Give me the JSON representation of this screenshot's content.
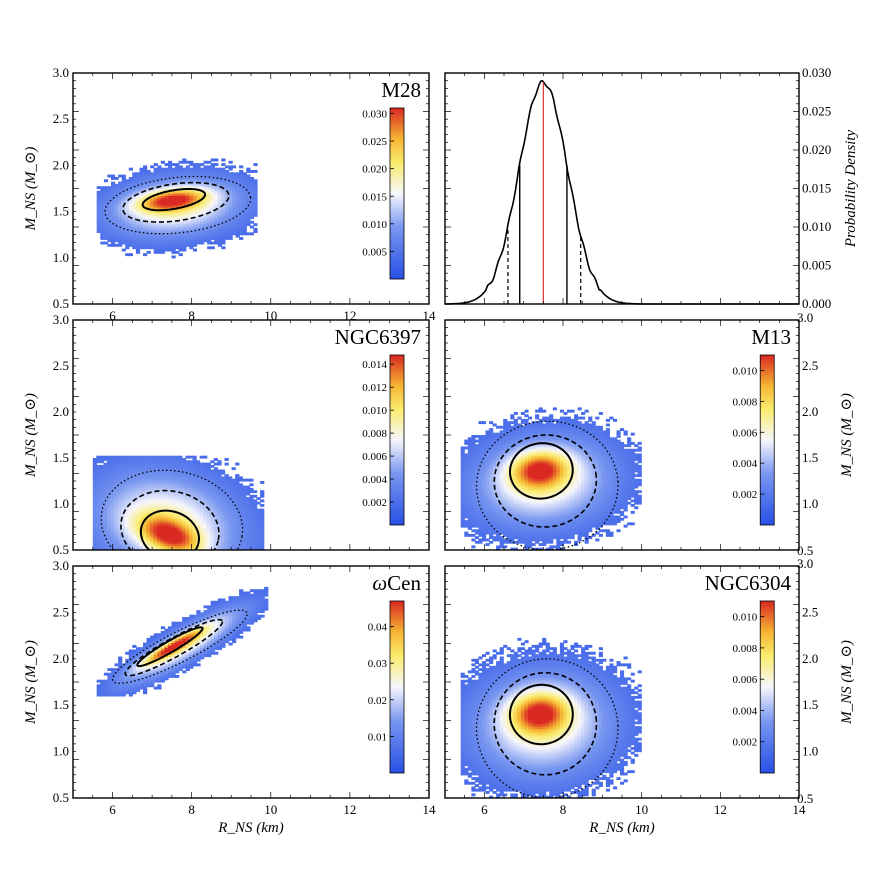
{
  "figure": {
    "xlabel": "R_NS (km)",
    "ylabel": "M_NS (M_⊙)",
    "pdf_ylabel": "Probability Density"
  },
  "chart_data": [
    {
      "type": "heatmap",
      "title": "M28",
      "panel": "top-left",
      "xlim": [
        5,
        14
      ],
      "ylim": [
        0.5,
        3.0
      ],
      "xticks": [
        6,
        8,
        10,
        12,
        14
      ],
      "yticks": [
        0.5,
        1.0,
        1.5,
        2.0,
        2.5,
        3.0
      ],
      "colorbar": {
        "min": 0,
        "max": 0.031,
        "ticks": [
          "0.005",
          "0.010",
          "0.015",
          "0.020",
          "0.025",
          "0.030"
        ]
      },
      "peak": {
        "x": 7.5,
        "y": 1.63,
        "sx": 0.62,
        "sy": 0.085,
        "rho": 0.35
      },
      "cloud": {
        "x": 7.6,
        "y": 1.55,
        "sx": 1.15,
        "sy": 0.22,
        "rho": 0.2,
        "xmin": 5.6,
        "xmax": 9.6,
        "ymin": 0.55,
        "ymax": 2.05
      },
      "contours": [
        {
          "style": "solid",
          "cx": 7.55,
          "cy": 1.63,
          "rx": 0.8,
          "ry": 0.1,
          "rot": 10
        },
        {
          "style": "dashed",
          "cx": 7.6,
          "cy": 1.6,
          "rx": 1.35,
          "ry": 0.2,
          "rot": 8
        },
        {
          "style": "dotted",
          "cx": 7.65,
          "cy": 1.57,
          "rx": 1.85,
          "ry": 0.3,
          "rot": 6
        }
      ]
    },
    {
      "type": "line",
      "title": "",
      "panel": "top-right",
      "xlim": [
        5,
        14
      ],
      "ylim": [
        0,
        0.03
      ],
      "yticks": [
        "0.000",
        "0.005",
        "0.010",
        "0.015",
        "0.020",
        "0.025",
        "0.030"
      ],
      "mean": 7.5,
      "sigma": 0.62,
      "peak": 0.0288,
      "solid_bounds": [
        6.9,
        8.1
      ],
      "dashed_bounds": [
        6.6,
        8.45
      ],
      "median_line": 7.5
    },
    {
      "type": "heatmap",
      "title": "NGC6397",
      "panel": "middle-left",
      "xlim": [
        5,
        14
      ],
      "ylim": [
        0.5,
        3.0
      ],
      "yticks": [
        0.5,
        1.0,
        1.5,
        2.0,
        2.5,
        3.0
      ],
      "colorbar": {
        "min": 0,
        "max": 0.0148,
        "ticks": [
          "0.002",
          "0.004",
          "0.006",
          "0.008",
          "0.010",
          "0.012",
          "0.014"
        ]
      },
      "peak": {
        "x": 7.45,
        "y": 0.66,
        "sx": 0.55,
        "sy": 0.15,
        "rho": -0.45
      },
      "cloud": {
        "x": 7.4,
        "y": 0.8,
        "sx": 1.25,
        "sy": 0.38,
        "rho": -0.2,
        "xmin": 5.5,
        "xmax": 9.8,
        "ymin": 0.5,
        "ymax": 1.5
      },
      "contours": [
        {
          "style": "solid",
          "cx": 7.45,
          "cy": 0.66,
          "rx": 0.75,
          "ry": 0.26,
          "rot": -20
        },
        {
          "style": "dashed",
          "cx": 7.45,
          "cy": 0.72,
          "rx": 1.25,
          "ry": 0.42,
          "rot": -12
        },
        {
          "style": "dotted",
          "cx": 7.5,
          "cy": 0.78,
          "rx": 1.8,
          "ry": 0.58,
          "rot": -10
        }
      ]
    },
    {
      "type": "heatmap",
      "title": "M13",
      "panel": "middle-right",
      "xlim": [
        5,
        14
      ],
      "ylim": [
        0.5,
        3.0
      ],
      "yticks_right": [
        "1.0",
        "1.5",
        "2.0",
        "2.5"
      ],
      "colorbar": {
        "min": 0,
        "max": 0.011,
        "ticks": [
          "0.002",
          "0.004",
          "0.006",
          "0.008",
          "0.010"
        ]
      },
      "peak": {
        "x": 7.4,
        "y": 1.38,
        "sx": 0.5,
        "sy": 0.14,
        "rho": 0.1
      },
      "cloud": {
        "x": 7.5,
        "y": 1.25,
        "sx": 1.2,
        "sy": 0.33,
        "rho": 0.1,
        "xmin": 5.4,
        "xmax": 9.9,
        "ymin": 0.5,
        "ymax": 2.05
      },
      "contours": [
        {
          "style": "solid",
          "cx": 7.45,
          "cy": 1.36,
          "rx": 0.8,
          "ry": 0.3,
          "rot": 8
        },
        {
          "style": "dashed",
          "cx": 7.55,
          "cy": 1.25,
          "rx": 1.3,
          "ry": 0.5,
          "rot": 5
        },
        {
          "style": "dotted",
          "cx": 7.6,
          "cy": 1.2,
          "rx": 1.8,
          "ry": 0.7,
          "rot": 3
        }
      ]
    },
    {
      "type": "heatmap",
      "title": "ωCen",
      "panel": "bottom-left",
      "xlim": [
        5,
        14
      ],
      "ylim": [
        0.5,
        3.0
      ],
      "xticks": [
        6,
        8,
        10,
        12,
        14
      ],
      "yticks": [
        0.5,
        1.0,
        1.5,
        2.0,
        2.5,
        3.0
      ],
      "colorbar": {
        "min": 0,
        "max": 0.047,
        "ticks": [
          "0.01",
          "0.02",
          "0.03",
          "0.04"
        ]
      },
      "peak": {
        "x": 7.5,
        "y": 2.13,
        "sx": 0.55,
        "sy": 0.14,
        "rho": 0.93
      },
      "cloud": {
        "x": 7.8,
        "y": 2.15,
        "sx": 1.05,
        "sy": 0.28,
        "rho": 0.88,
        "xmin": 5.6,
        "xmax": 9.9,
        "ymin": 1.6,
        "ymax": 2.75
      },
      "contours": [
        {
          "style": "solid",
          "cx": 7.45,
          "cy": 2.13,
          "rx": 0.95,
          "ry": 0.06,
          "rot": 30
        },
        {
          "style": "dashed",
          "cx": 7.55,
          "cy": 2.12,
          "rx": 1.4,
          "ry": 0.1,
          "rot": 29
        },
        {
          "style": "dotted",
          "cx": 7.7,
          "cy": 2.13,
          "rx": 1.9,
          "ry": 0.16,
          "rot": 27
        }
      ]
    },
    {
      "type": "heatmap",
      "title": "NGC6304",
      "panel": "bottom-right",
      "xlim": [
        5,
        14
      ],
      "ylim": [
        0.5,
        3.0
      ],
      "xticks": [
        6,
        8,
        10,
        12,
        14
      ],
      "yticks_right": [
        "1.0",
        "1.5",
        "2.0",
        "2.5"
      ],
      "colorbar": {
        "min": 0,
        "max": 0.011,
        "ticks": [
          "0.002",
          "0.004",
          "0.006",
          "0.008",
          "0.010"
        ]
      },
      "peak": {
        "x": 7.4,
        "y": 1.42,
        "sx": 0.5,
        "sy": 0.15,
        "rho": 0.05
      },
      "cloud": {
        "x": 7.5,
        "y": 1.3,
        "sx": 1.2,
        "sy": 0.38,
        "rho": 0.05,
        "xmin": 5.4,
        "xmax": 9.9,
        "ymin": 0.5,
        "ymax": 2.4
      },
      "contours": [
        {
          "style": "solid",
          "cx": 7.45,
          "cy": 1.4,
          "rx": 0.8,
          "ry": 0.32,
          "rot": 5
        },
        {
          "style": "dashed",
          "cx": 7.55,
          "cy": 1.3,
          "rx": 1.3,
          "ry": 0.55,
          "rot": 3
        },
        {
          "style": "dotted",
          "cx": 7.6,
          "cy": 1.25,
          "rx": 1.8,
          "ry": 0.75,
          "rot": 2
        }
      ]
    }
  ]
}
